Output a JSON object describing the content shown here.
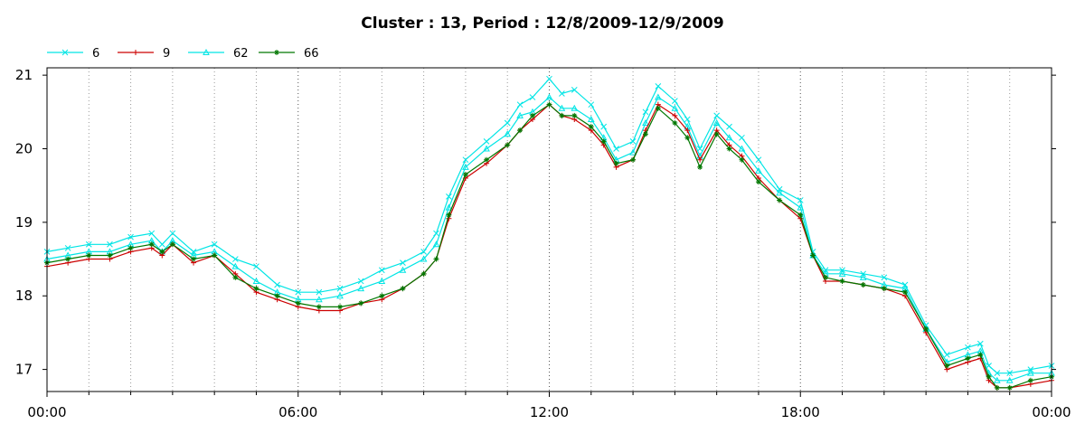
{
  "chart_data": {
    "type": "line",
    "title": "Cluster : 13, Period : 12/8/2009-12/9/2009",
    "xlabel": "",
    "ylabel": "",
    "x_ticks": [
      "00:00",
      "06:00",
      "12:00",
      "18:00",
      "00:00"
    ],
    "x_range_hours": [
      0,
      24
    ],
    "ylim": [
      16.7,
      21.1
    ],
    "y_ticks": [
      17,
      18,
      19,
      20,
      21
    ],
    "grid": "dotted vertical gridlines every hour, stronger at 6-hour marks",
    "legend_position": "top-left",
    "x": [
      0,
      0.5,
      1,
      1.5,
      2,
      2.5,
      2.75,
      3,
      3.5,
      4,
      4.5,
      5,
      5.5,
      6,
      6.5,
      7,
      7.5,
      8,
      8.5,
      9,
      9.3,
      9.6,
      10,
      10.5,
      11,
      11.3,
      11.6,
      12,
      12.3,
      12.6,
      13,
      13.3,
      13.6,
      14,
      14.3,
      14.6,
      15,
      15.3,
      15.6,
      16,
      16.3,
      16.6,
      17,
      17.5,
      18,
      18.3,
      18.6,
      19,
      19.5,
      20,
      20.5,
      21,
      21.5,
      22,
      22.3,
      22.5,
      22.7,
      23,
      23.5,
      24
    ],
    "series": [
      {
        "name": "6",
        "color": "#00e5e5",
        "marker": "x",
        "values": [
          18.6,
          18.65,
          18.7,
          18.7,
          18.8,
          18.85,
          18.7,
          18.85,
          18.6,
          18.7,
          18.5,
          18.4,
          18.15,
          18.05,
          18.05,
          18.1,
          18.2,
          18.35,
          18.45,
          18.6,
          18.85,
          19.35,
          19.85,
          20.1,
          20.35,
          20.6,
          20.7,
          20.95,
          20.75,
          20.8,
          20.6,
          20.3,
          20.0,
          20.1,
          20.5,
          20.85,
          20.65,
          20.4,
          20.0,
          20.45,
          20.3,
          20.15,
          19.85,
          19.45,
          19.3,
          18.6,
          18.35,
          18.35,
          18.3,
          18.25,
          18.15,
          17.6,
          17.2,
          17.3,
          17.35,
          17.05,
          16.95,
          16.95,
          17.0,
          17.05
        ]
      },
      {
        "name": "9",
        "color": "#cc0000",
        "marker": "+",
        "values": [
          18.4,
          18.45,
          18.5,
          18.5,
          18.6,
          18.65,
          18.55,
          18.7,
          18.45,
          18.55,
          18.3,
          18.05,
          17.95,
          17.85,
          17.8,
          17.8,
          17.9,
          17.95,
          18.1,
          18.3,
          18.5,
          19.05,
          19.6,
          19.8,
          20.05,
          20.25,
          20.4,
          20.6,
          20.45,
          20.4,
          20.25,
          20.05,
          19.75,
          19.85,
          20.25,
          20.6,
          20.45,
          20.25,
          19.85,
          20.25,
          20.05,
          19.9,
          19.6,
          19.3,
          19.05,
          18.55,
          18.2,
          18.2,
          18.15,
          18.1,
          18.0,
          17.5,
          17.0,
          17.1,
          17.15,
          16.85,
          16.75,
          16.75,
          16.8,
          16.85
        ]
      },
      {
        "name": "62",
        "color": "#00e5e5",
        "marker": "triangle",
        "values": [
          18.5,
          18.55,
          18.6,
          18.6,
          18.7,
          18.75,
          18.6,
          18.75,
          18.55,
          18.6,
          18.4,
          18.2,
          18.05,
          17.95,
          17.95,
          18.0,
          18.1,
          18.2,
          18.35,
          18.5,
          18.7,
          19.2,
          19.75,
          20.0,
          20.2,
          20.45,
          20.5,
          20.7,
          20.55,
          20.55,
          20.4,
          20.15,
          19.85,
          19.95,
          20.35,
          20.7,
          20.55,
          20.3,
          19.9,
          20.35,
          20.15,
          20.0,
          19.7,
          19.4,
          19.2,
          18.55,
          18.3,
          18.3,
          18.25,
          18.15,
          18.1,
          17.55,
          17.1,
          17.2,
          17.25,
          16.95,
          16.85,
          16.85,
          16.95,
          16.95
        ]
      },
      {
        "name": "66",
        "color": "#007700",
        "marker": "asterisk",
        "values": [
          18.45,
          18.5,
          18.55,
          18.55,
          18.65,
          18.7,
          18.6,
          18.7,
          18.5,
          18.55,
          18.25,
          18.1,
          18.0,
          17.9,
          17.85,
          17.85,
          17.9,
          18.0,
          18.1,
          18.3,
          18.5,
          19.1,
          19.65,
          19.85,
          20.05,
          20.25,
          20.45,
          20.6,
          20.45,
          20.45,
          20.3,
          20.1,
          19.8,
          19.85,
          20.2,
          20.55,
          20.35,
          20.15,
          19.75,
          20.2,
          20.0,
          19.85,
          19.55,
          19.3,
          19.1,
          18.55,
          18.25,
          18.2,
          18.15,
          18.1,
          18.05,
          17.55,
          17.05,
          17.15,
          17.2,
          16.9,
          16.75,
          16.75,
          16.85,
          16.9
        ]
      }
    ]
  }
}
